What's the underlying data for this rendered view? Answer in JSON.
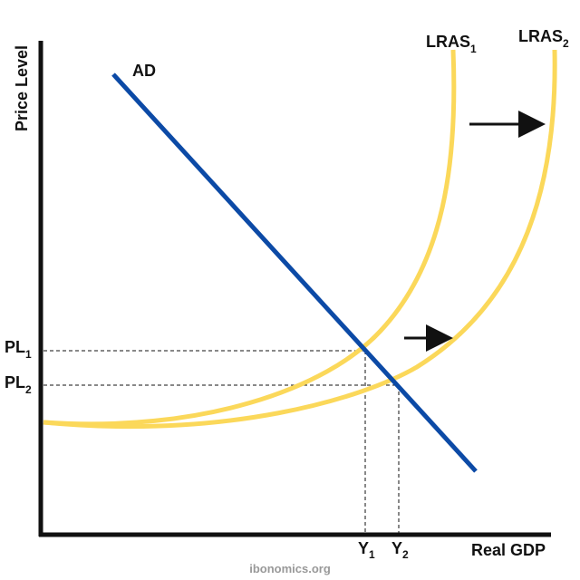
{
  "y_axis_label": "Price Level",
  "x_axis_label": "Real GDP",
  "curves": [
    {
      "label": "AD"
    },
    {
      "label": "LRAS",
      "subscript": "1"
    },
    {
      "label": "LRAS",
      "subscript": "2"
    }
  ],
  "price_levels": [
    {
      "label": "PL",
      "subscript": "1"
    },
    {
      "label": "PL",
      "subscript": "2"
    }
  ],
  "outputs": [
    {
      "label": "Y",
      "subscript": "1"
    },
    {
      "label": "Y",
      "subscript": "2"
    }
  ],
  "footer": "ibonomics.org"
}
